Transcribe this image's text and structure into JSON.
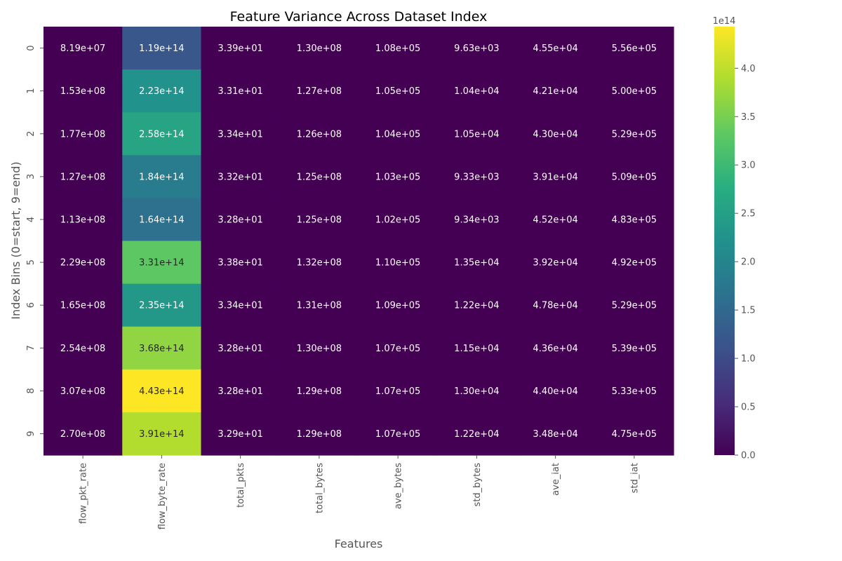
{
  "chart_data": {
    "type": "heatmap",
    "title": "Feature Variance Across Dataset Index",
    "xlabel": "Features",
    "ylabel": "Index Bins (0=start, 9=end)",
    "x_categories": [
      "flow_pkt_rate",
      "flow_byte_rate",
      "total_pkts",
      "total_bytes",
      "ave_bytes",
      "std_bytes",
      "ave_iat",
      "std_iat"
    ],
    "y_categories": [
      "0",
      "1",
      "2",
      "3",
      "4",
      "5",
      "6",
      "7",
      "8",
      "9"
    ],
    "cells": [
      [
        "8.19e+07",
        "1.19e+14",
        "3.39e+01",
        "1.30e+08",
        "1.08e+05",
        "9.63e+03",
        "4.55e+04",
        "5.56e+05"
      ],
      [
        "1.53e+08",
        "2.23e+14",
        "3.31e+01",
        "1.27e+08",
        "1.05e+05",
        "1.04e+04",
        "4.21e+04",
        "5.00e+05"
      ],
      [
        "1.77e+08",
        "2.58e+14",
        "3.34e+01",
        "1.26e+08",
        "1.04e+05",
        "1.05e+04",
        "4.30e+04",
        "5.29e+05"
      ],
      [
        "1.27e+08",
        "1.84e+14",
        "3.32e+01",
        "1.25e+08",
        "1.03e+05",
        "9.33e+03",
        "3.91e+04",
        "5.09e+05"
      ],
      [
        "1.13e+08",
        "1.64e+14",
        "3.28e+01",
        "1.25e+08",
        "1.02e+05",
        "9.34e+03",
        "4.52e+04",
        "4.83e+05"
      ],
      [
        "2.29e+08",
        "3.31e+14",
        "3.38e+01",
        "1.32e+08",
        "1.10e+05",
        "1.35e+04",
        "3.92e+04",
        "4.92e+05"
      ],
      [
        "1.65e+08",
        "2.35e+14",
        "3.34e+01",
        "1.31e+08",
        "1.09e+05",
        "1.22e+04",
        "4.78e+04",
        "5.29e+05"
      ],
      [
        "2.54e+08",
        "3.68e+14",
        "3.28e+01",
        "1.30e+08",
        "1.07e+05",
        "1.15e+04",
        "4.36e+04",
        "5.39e+05"
      ],
      [
        "3.07e+08",
        "4.43e+14",
        "3.28e+01",
        "1.29e+08",
        "1.07e+05",
        "1.30e+04",
        "4.40e+04",
        "5.33e+05"
      ],
      [
        "2.70e+08",
        "3.91e+14",
        "3.29e+01",
        "1.29e+08",
        "1.07e+05",
        "1.22e+04",
        "3.48e+04",
        "4.75e+05"
      ]
    ],
    "colormap": "viridis",
    "colorbar": {
      "min": 0,
      "max": 443000000000000.0,
      "ticks": [
        0.0,
        0.5,
        1.0,
        1.5,
        2.0,
        2.5,
        3.0,
        3.5,
        4.0
      ],
      "tick_labels": [
        "0.0",
        "0.5",
        "1.0",
        "1.5",
        "2.0",
        "2.5",
        "3.0",
        "3.5",
        "4.0"
      ],
      "multiplier_label": "1e14"
    },
    "grid": false,
    "legend": "colorbar-right"
  }
}
